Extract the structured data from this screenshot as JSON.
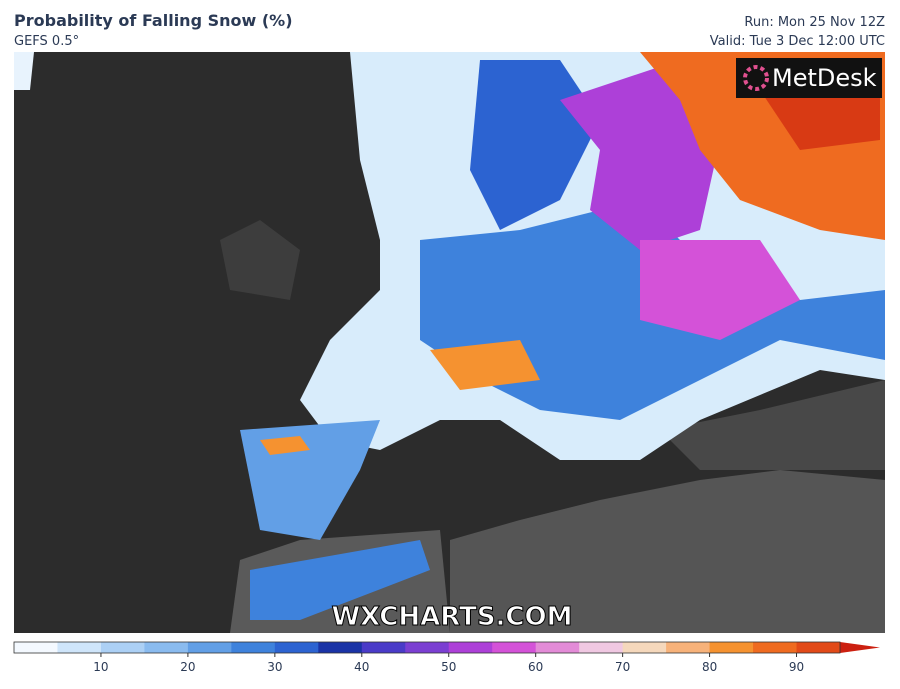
{
  "header": {
    "title": "Probability of Falling Snow (%)",
    "subtitle": "GEFS 0.5°",
    "run": "Run: Mon 25 Nov 12Z",
    "valid": "Valid: Tue 3 Dec 12:00 UTC"
  },
  "logo": "MetDesk",
  "watermark": "WXCHARTS.COM",
  "colorbar": {
    "lim": [
      0,
      95
    ],
    "ticks": [
      10,
      20,
      30,
      40,
      50,
      60,
      70,
      80,
      90
    ],
    "colors": [
      "#f4f9ff",
      "#cfe5fa",
      "#acd0f5",
      "#8abbef",
      "#629fe6",
      "#3e82dc",
      "#2c63d1",
      "#1a33a6",
      "#4a3bc8",
      "#7b3fd2",
      "#ad40d8",
      "#d452d8",
      "#e38bd7",
      "#f0c8e2",
      "#f5d8bc",
      "#f7b27a",
      "#f59230",
      "#ef6b20",
      "#e24a18"
    ],
    "over_color": "#cc2010"
  }
}
